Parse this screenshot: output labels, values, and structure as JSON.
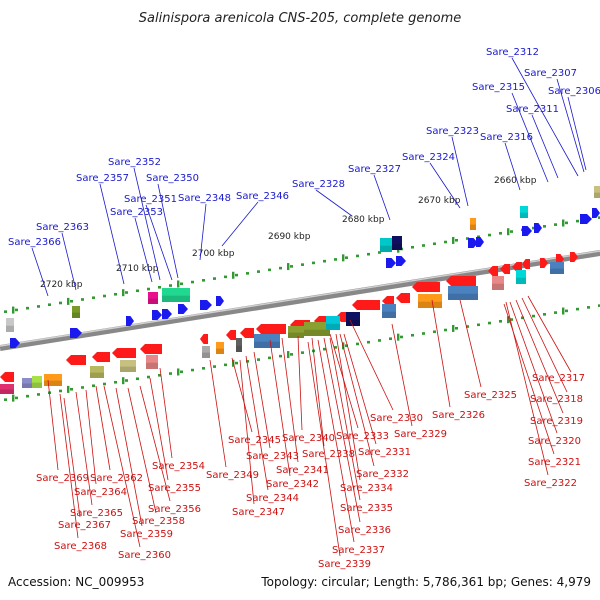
{
  "title": "Salinispora arenicola CNS-205, complete genome",
  "footer": {
    "accession": "Accession: NC_009953",
    "stats": "Topology: circular; Length: 5,786,361 bp; Genes: 4,979"
  },
  "colors": {
    "label_upper": "#1a1acc",
    "label_lower": "#cc1111",
    "forward_strand": "#ff1a1a",
    "reverse_strand": "#1a1aee",
    "backbone": "#888888",
    "tick": "#339933"
  },
  "kbp_ticks": [
    "2660 kbp",
    "2670 kbp",
    "2680 kbp",
    "2690 kbp",
    "2700 kbp",
    "2710 kbp",
    "2720 kbp"
  ],
  "upper_labels": [
    "Sare_2312",
    "Sare_2307",
    "Sare_2315",
    "Sare_2306",
    "Sare_2311",
    "Sare_2323",
    "Sare_2316",
    "Sare_2324",
    "Sare_2352",
    "Sare_2327",
    "Sare_2357",
    "Sare_2350",
    "Sare_2328",
    "Sare_2346",
    "Sare_2351",
    "Sare_2348",
    "Sare_2353",
    "Sare_2363",
    "Sare_2366"
  ],
  "lower_labels": [
    "Sare_2317",
    "Sare_2318",
    "Sare_2325",
    "Sare_2326",
    "Sare_2319",
    "Sare_2330",
    "Sare_2329",
    "Sare_2320",
    "Sare_2345",
    "Sare_2340",
    "Sare_2333",
    "Sare_2343",
    "Sare_2338",
    "Sare_2331",
    "Sare_2321",
    "Sare_2354",
    "Sare_2341",
    "Sare_2332",
    "Sare_2369",
    "Sare_2362",
    "Sare_2349",
    "Sare_2322",
    "Sare_2342",
    "Sare_2334",
    "Sare_2364",
    "Sare_2355",
    "Sare_2344",
    "Sare_2335",
    "Sare_2356",
    "Sare_2365",
    "Sare_2347",
    "Sare_2358",
    "Sare_2367",
    "Sare_2336",
    "Sare_2359",
    "Sare_2368",
    "Sare_2337",
    "Sare_2360",
    "Sare_2339"
  ]
}
